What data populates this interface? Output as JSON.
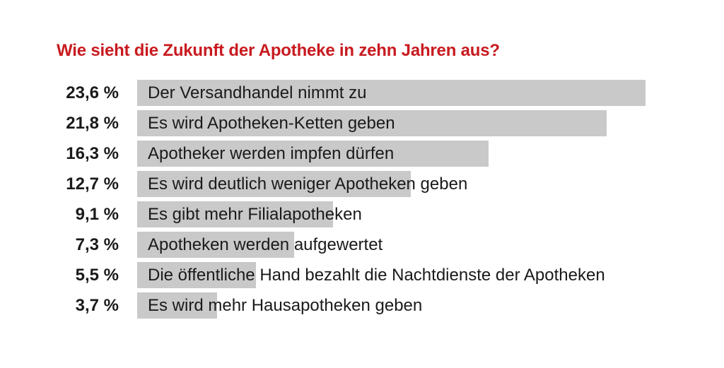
{
  "chart_data": {
    "type": "bar",
    "orientation": "horizontal",
    "title": "Wie sieht die Zukunft der Apotheke in zehn Jahren aus?",
    "categories": [
      "Der Versandhandel nimmt zu",
      "Es wird Apotheken-Ketten geben",
      "Apotheker werden impfen dürfen",
      "Es wird deutlich weniger Apotheken geben",
      "Es gibt mehr Filialapotheken",
      "Apotheken werden aufgewertet",
      "Die öffentliche Hand bezahlt die Nachtdienste der Apotheken",
      "Es wird mehr Hausapotheken geben"
    ],
    "values": [
      23.6,
      21.8,
      16.3,
      12.7,
      9.1,
      7.3,
      5.5,
      3.7
    ],
    "value_labels": [
      "23,6 %",
      "21,8 %",
      "16,3 %",
      "12,7 %",
      "9,1 %",
      "7,3 %",
      "5,5 %",
      "3,7 %"
    ],
    "xlim": [
      0,
      23.6
    ],
    "grid": false,
    "legend": "none",
    "colors": {
      "title": "#c81a1f",
      "bar": "#c9c9c9",
      "text": "#1a1a1a"
    }
  }
}
